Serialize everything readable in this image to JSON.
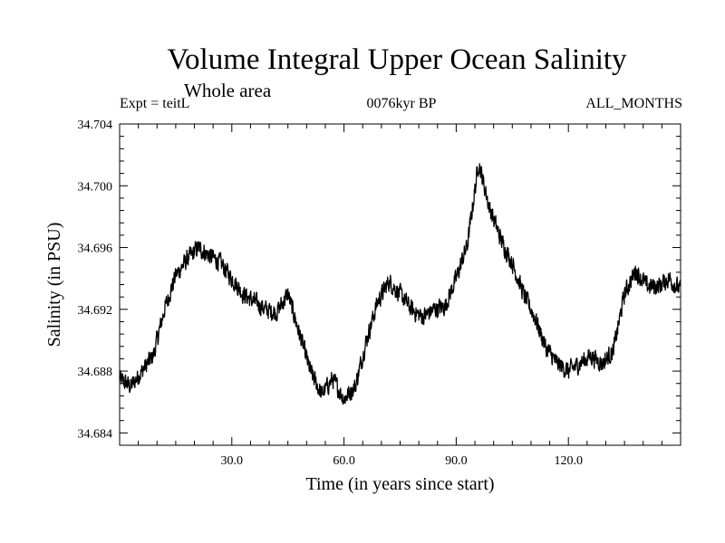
{
  "header": {
    "title": "Volume Integral Upper Ocean Salinity",
    "subtitle": "Whole area",
    "experiment": "Expt = teitL",
    "period": "0076kyr BP",
    "months": "ALL_MONTHS"
  },
  "chart_data": {
    "type": "line",
    "title": "Volume Integral Upper Ocean Salinity",
    "xlabel": "Time (in years since start)",
    "ylabel": "Salinity (in PSU)",
    "xlim": [
      0,
      150
    ],
    "ylim": [
      34.6832,
      34.704
    ],
    "x_ticks": [
      30,
      60,
      90,
      120
    ],
    "x_tick_labels": [
      "30.0",
      "60.0",
      "90.0",
      "120.0"
    ],
    "y_ticks": [
      34.684,
      34.688,
      34.692,
      34.696,
      34.7,
      34.704
    ],
    "y_tick_labels": [
      "34.684",
      "34.688",
      "34.692",
      "34.696",
      "34.700",
      "34.704"
    ],
    "noise_amplitude": 0.0007,
    "series": [
      {
        "name": "Salinity",
        "x": [
          0,
          3,
          6,
          9,
          12,
          15,
          18,
          21,
          24,
          27,
          30,
          33,
          36,
          39,
          42,
          45,
          48,
          51,
          54,
          57,
          60,
          63,
          66,
          69,
          72,
          75,
          78,
          81,
          84,
          87,
          90,
          93,
          96,
          99,
          102,
          105,
          108,
          111,
          114,
          117,
          120,
          123,
          126,
          129,
          132,
          135,
          138,
          141,
          144,
          147,
          150
        ],
        "values": [
          34.6875,
          34.687,
          34.688,
          34.689,
          34.692,
          34.6942,
          34.6952,
          34.696,
          34.6955,
          34.695,
          34.694,
          34.693,
          34.6925,
          34.692,
          34.6918,
          34.693,
          34.6905,
          34.688,
          34.6865,
          34.6875,
          34.6862,
          34.687,
          34.69,
          34.6925,
          34.6938,
          34.693,
          34.692,
          34.6915,
          34.692,
          34.6922,
          34.694,
          34.6962,
          34.7015,
          34.6985,
          34.6965,
          34.695,
          34.693,
          34.6915,
          34.6895,
          34.6885,
          34.688,
          34.6885,
          34.689,
          34.6885,
          34.6893,
          34.693,
          34.6945,
          34.6935,
          34.6935,
          34.694,
          34.6932
        ]
      }
    ]
  }
}
